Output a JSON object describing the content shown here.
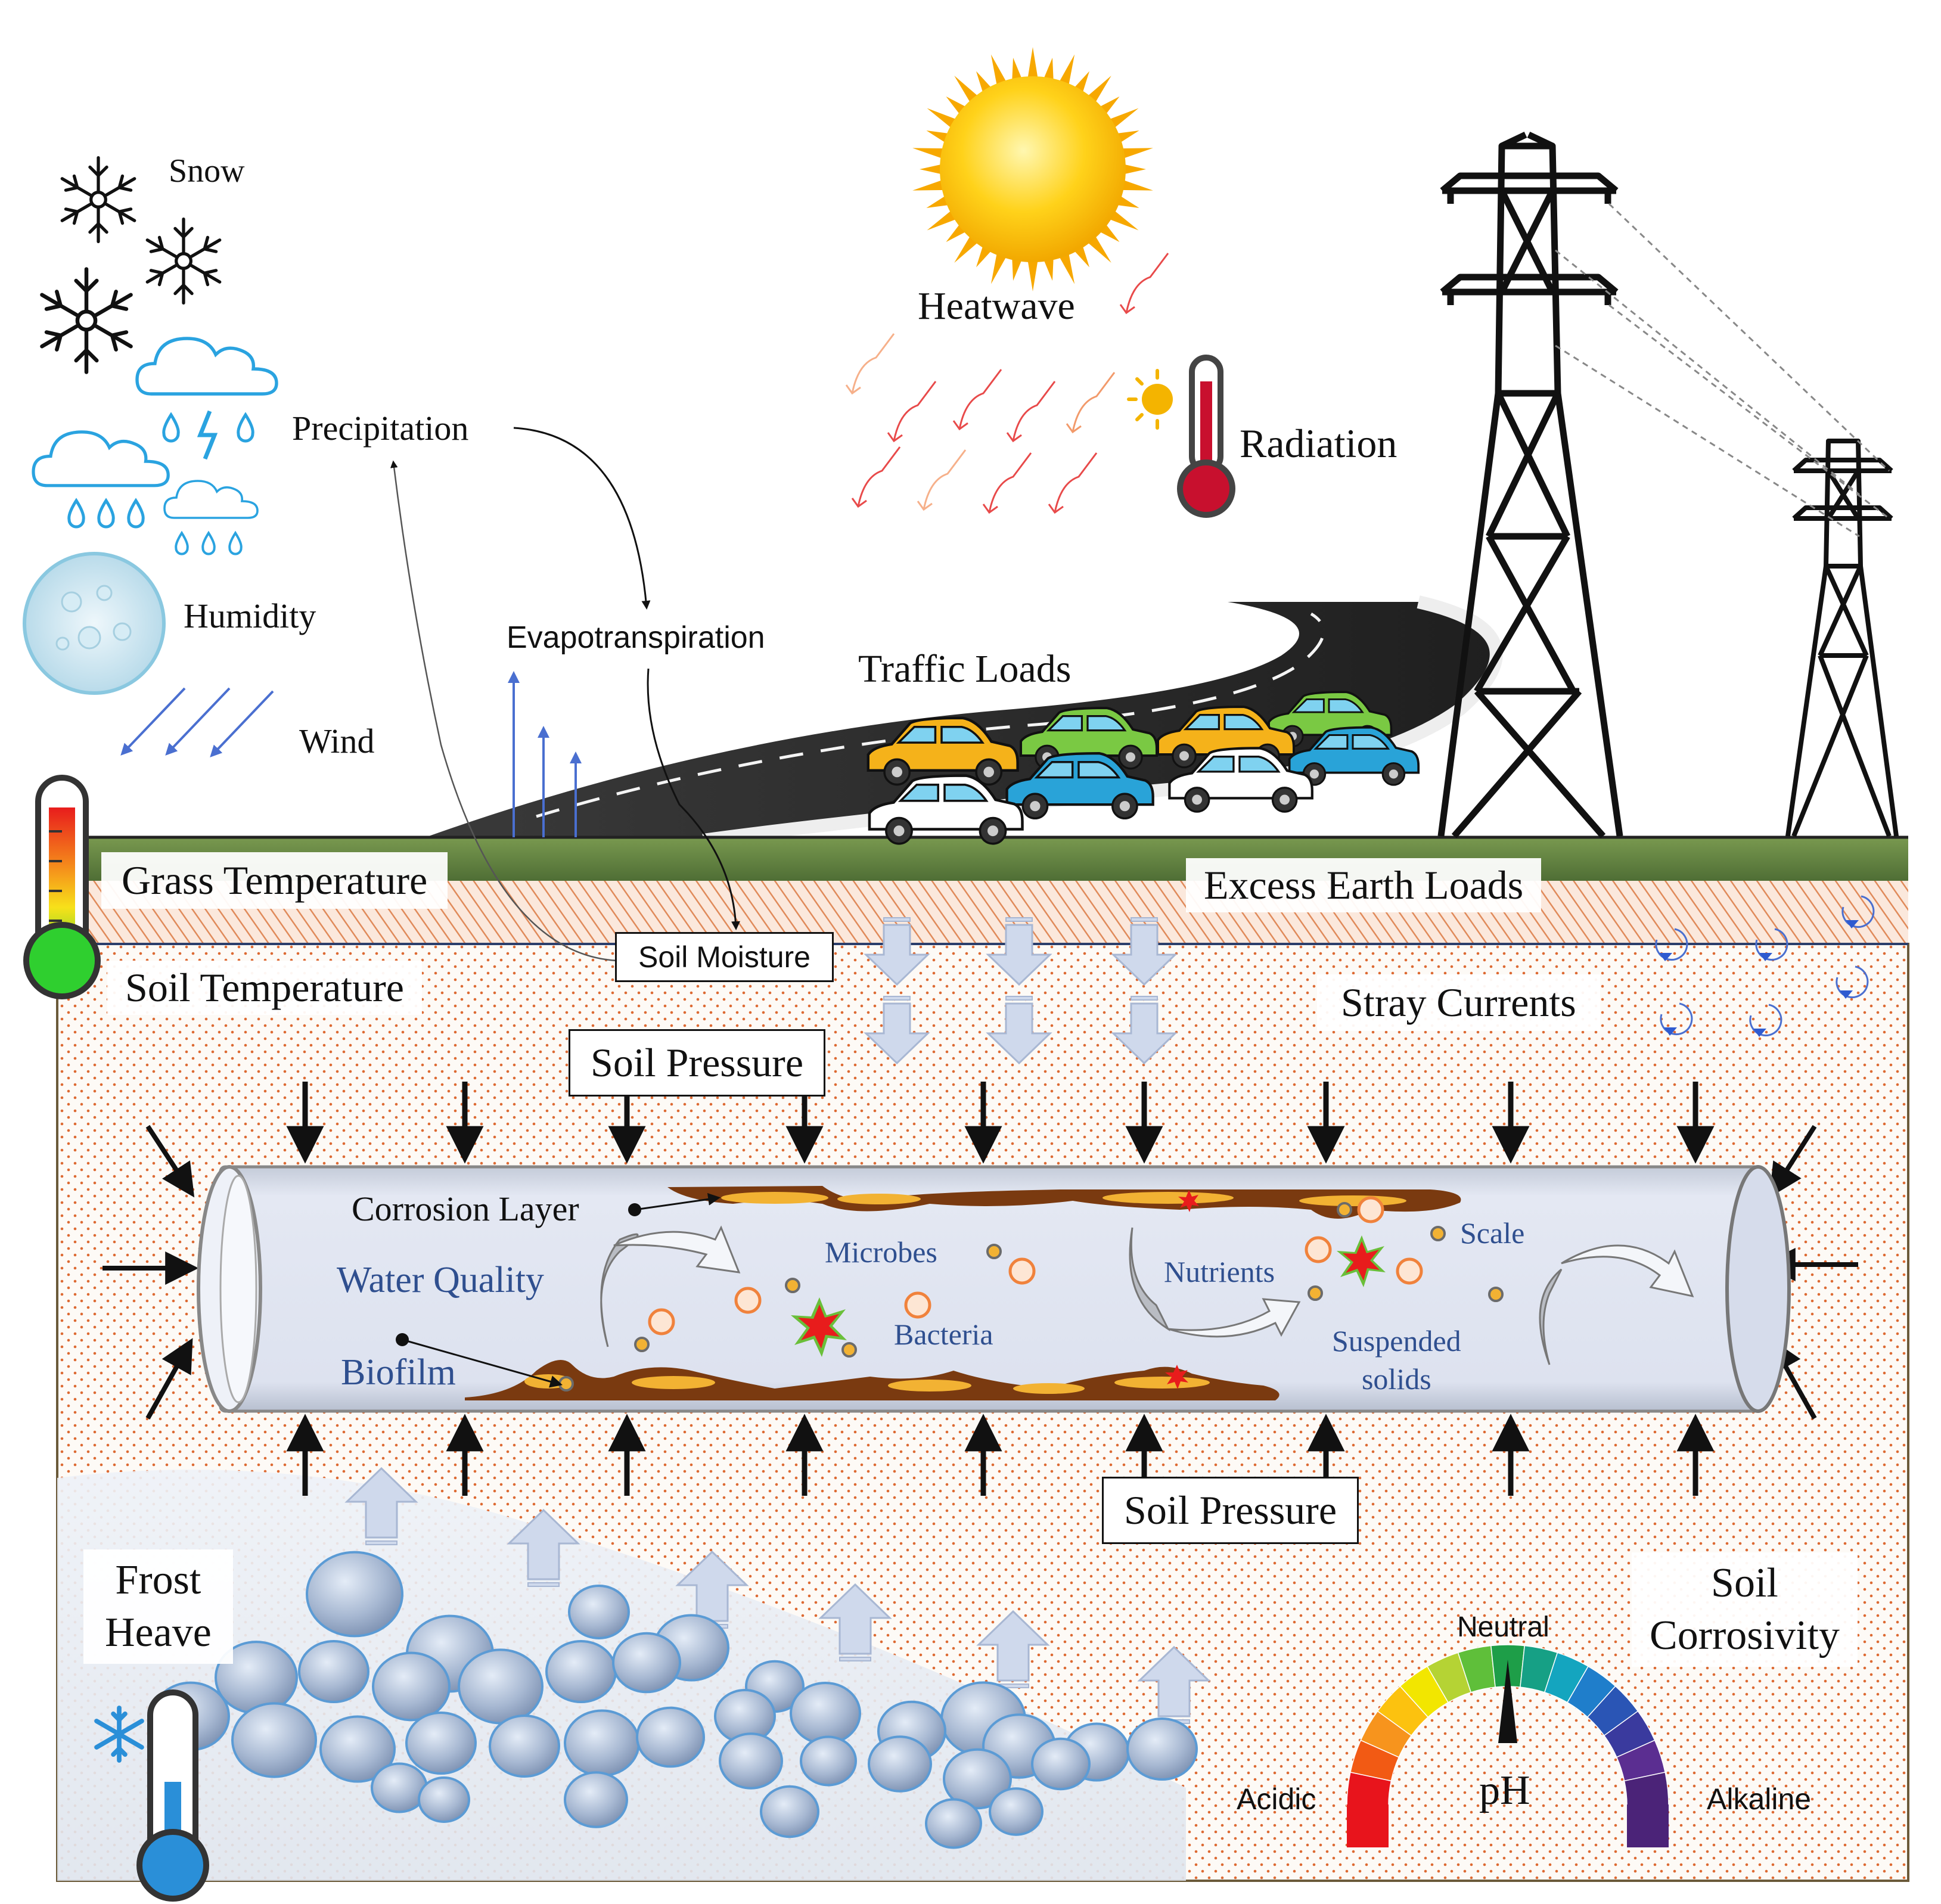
{
  "weather": {
    "snow": "Snow",
    "precipitation": "Precipitation",
    "humidity": "Humidity",
    "wind": "Wind"
  },
  "atmosphere": {
    "heatwave": "Heatwave",
    "radiation": "Radiation",
    "evapotranspiration": "Evapotranspiration",
    "traffic_loads": "Traffic Loads"
  },
  "ground": {
    "grass_temperature": "Grass Temperature",
    "excess_earth_loads": "Excess Earth Loads",
    "soil_moisture": "Soil Moisture",
    "soil_temperature": "Soil Temperature",
    "stray_currents": "Stray Currents",
    "soil_pressure_top": "Soil Pressure",
    "soil_pressure_bottom": "Soil Pressure",
    "frost_heave_line1": "Frost",
    "frost_heave_line2": "Heave",
    "soil_corrosivity_line1": "Soil",
    "soil_corrosivity_line2": "Corrosivity"
  },
  "pipe": {
    "corrosion_layer": "Corrosion Layer",
    "water_quality": "Water Quality",
    "biofilm": "Biofilm",
    "microbes": "Microbes",
    "bacteria": "Bacteria",
    "nutrients": "Nutrients",
    "scale": "Scale",
    "suspended_line1": "Suspended",
    "suspended_line2": "solids"
  },
  "ph_gauge": {
    "neutral": "Neutral",
    "acidic": "Acidic",
    "alkaline": "Alkaline",
    "ph": "pH",
    "colors": [
      "#e8141c",
      "#f25a14",
      "#f7941d",
      "#fcc20f",
      "#f2e600",
      "#b5d334",
      "#5fbf3a",
      "#1e9e48",
      "#16a085",
      "#14a5bf",
      "#1f7ecb",
      "#2a55b5",
      "#3a3a9e",
      "#5b2e91",
      "#4b2378"
    ]
  },
  "colors": {
    "soil_dots": "#d9632a",
    "pipe_fill": "#dfe4f2",
    "corrosion": "#7a3a10",
    "corrosion_inner": "#f2b233",
    "water_quality_text": "#2f4f8f",
    "arrow_blue": "#4a6fd0"
  }
}
